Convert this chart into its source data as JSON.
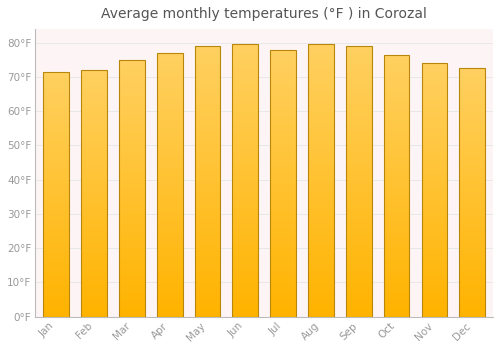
{
  "title": "Average monthly temperatures (°F ) in Corozal",
  "months": [
    "Jan",
    "Feb",
    "Mar",
    "Apr",
    "May",
    "Jun",
    "Jul",
    "Aug",
    "Sep",
    "Oct",
    "Nov",
    "Dec"
  ],
  "values": [
    71.5,
    72.0,
    75.0,
    77.0,
    79.0,
    79.5,
    78.0,
    79.5,
    79.0,
    76.5,
    74.0,
    72.5
  ],
  "bar_color_bottom": "#FFB300",
  "bar_color_top": "#FFD060",
  "bar_edge_color": "#B8860B",
  "ylim": [
    0,
    84
  ],
  "yticks": [
    0,
    10,
    20,
    30,
    40,
    50,
    60,
    70,
    80
  ],
  "ytick_labels": [
    "0°F",
    "10°F",
    "20°F",
    "30°F",
    "40°F",
    "50°F",
    "60°F",
    "70°F",
    "80°F"
  ],
  "background_color": "#ffffff",
  "plot_bg_color": "#fdf5f5",
  "grid_color": "#e8e8e8",
  "title_fontsize": 10,
  "tick_fontsize": 7.5,
  "font_color": "#999999",
  "title_color": "#555555"
}
